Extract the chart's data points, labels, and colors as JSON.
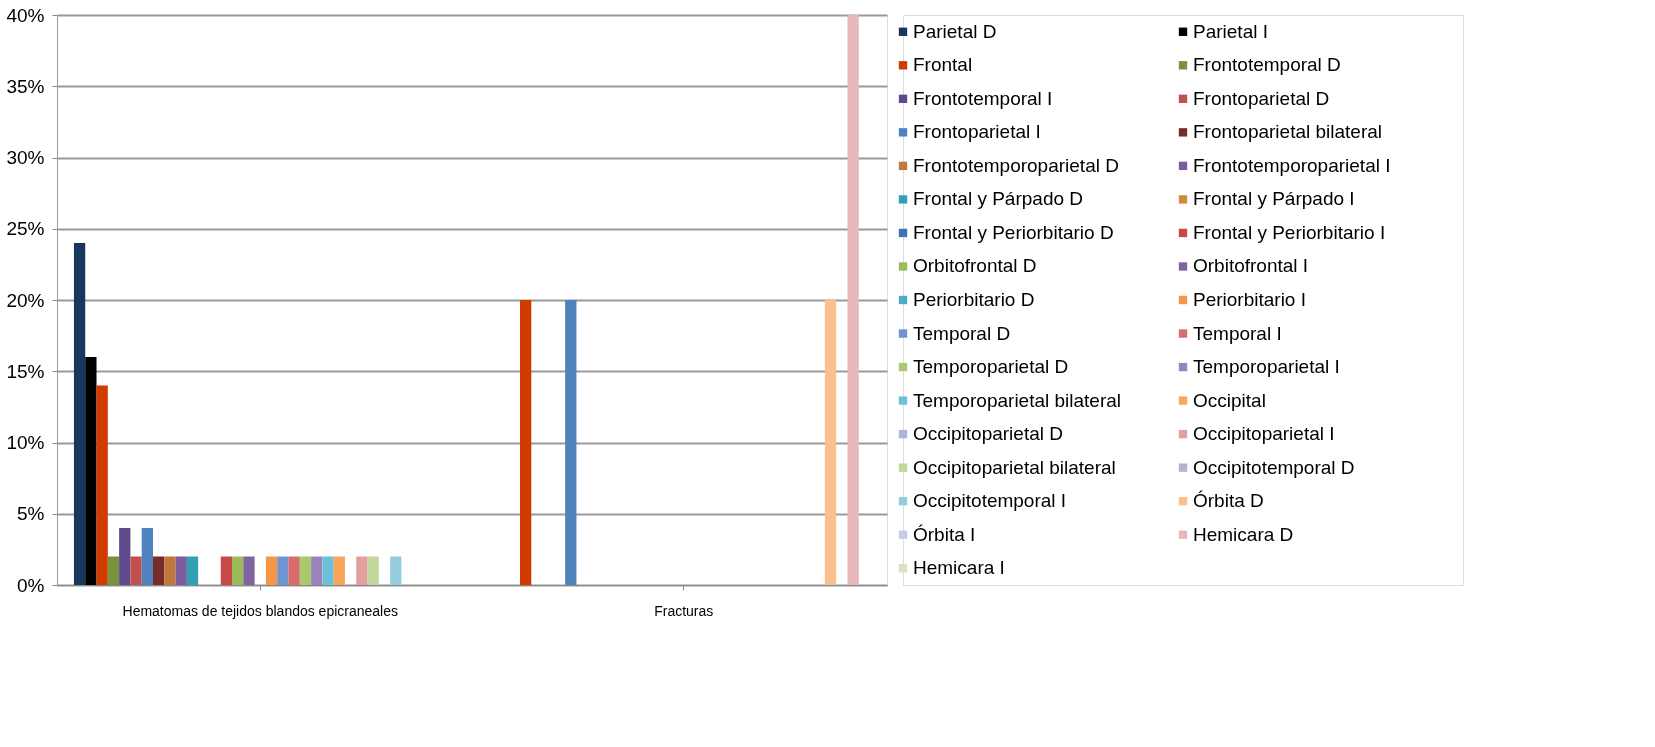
{
  "chart_data": {
    "type": "bar",
    "categories": [
      "Hematomas de tejidos blandos epicraneales",
      "Fracturas"
    ],
    "ylim": [
      0,
      40
    ],
    "yticks": [
      {
        "value": 0,
        "label": "0%"
      },
      {
        "value": 5,
        "label": "5%"
      },
      {
        "value": 10,
        "label": "10%"
      },
      {
        "value": 15,
        "label": "15%"
      },
      {
        "value": 20,
        "label": "20%"
      },
      {
        "value": 25,
        "label": "25%"
      },
      {
        "value": 30,
        "label": "30%"
      },
      {
        "value": 35,
        "label": "35%"
      },
      {
        "value": 40,
        "label": "40%"
      }
    ],
    "grid": "y",
    "legend": "right",
    "series": [
      {
        "name": "Parietal D",
        "color": "#17375e",
        "values": [
          24,
          0
        ]
      },
      {
        "name": "Parietal I",
        "color": "#000000",
        "values": [
          16,
          0
        ]
      },
      {
        "name": "Frontal",
        "color": "#d13b00",
        "values": [
          14,
          20
        ]
      },
      {
        "name": "Frontotemporal D",
        "color": "#77933c",
        "values": [
          2,
          0
        ]
      },
      {
        "name": "Frontotemporal I",
        "color": "#5f4b8b",
        "values": [
          4,
          0
        ]
      },
      {
        "name": "Frontoparietal D",
        "color": "#c0504d",
        "values": [
          2,
          0
        ]
      },
      {
        "name": "Frontoparietal I",
        "color": "#4f81bd",
        "values": [
          4,
          20
        ]
      },
      {
        "name": "Frontoparietal bilateral",
        "color": "#772c2a",
        "values": [
          2,
          0
        ]
      },
      {
        "name": "Frontotemporoparietal D",
        "color": "#c0783c",
        "values": [
          2,
          0
        ]
      },
      {
        "name": "Frontotemporoparietal I",
        "color": "#7c5c9c",
        "values": [
          2,
          0
        ]
      },
      {
        "name": "Frontal y Párpado D",
        "color": "#31a0b5",
        "values": [
          2,
          0
        ]
      },
      {
        "name": "Frontal y Párpado I",
        "color": "#d08a3a",
        "values": [
          0,
          0
        ]
      },
      {
        "name": "Frontal y Periorbitario D",
        "color": "#3e72b5",
        "values": [
          0,
          0
        ]
      },
      {
        "name": "Frontal y Periorbitario I",
        "color": "#c84848",
        "values": [
          2,
          0
        ]
      },
      {
        "name": "Orbitofrontal D",
        "color": "#9bbb59",
        "values": [
          2,
          0
        ]
      },
      {
        "name": "Orbitofrontal I",
        "color": "#8064a2",
        "values": [
          2,
          0
        ]
      },
      {
        "name": "Periorbitario D",
        "color": "#4bacc6",
        "values": [
          0,
          0
        ]
      },
      {
        "name": "Periorbitario I",
        "color": "#f79646",
        "values": [
          2,
          0
        ]
      },
      {
        "name": "Temporal D",
        "color": "#6f94d0",
        "values": [
          2,
          0
        ]
      },
      {
        "name": "Temporal I",
        "color": "#d86b6b",
        "values": [
          2,
          0
        ]
      },
      {
        "name": "Temporoparietal D",
        "color": "#a9c96b",
        "values": [
          2,
          0
        ]
      },
      {
        "name": "Temporoparietal I",
        "color": "#9a83bd",
        "values": [
          2,
          0
        ]
      },
      {
        "name": "Temporoparietal bilateral",
        "color": "#6cc0d8",
        "values": [
          2,
          0
        ]
      },
      {
        "name": "Occipital",
        "color": "#f9a65a",
        "values": [
          2,
          0
        ]
      },
      {
        "name": "Occipitoparietal D",
        "color": "#a9b6d8",
        "values": [
          0,
          0
        ]
      },
      {
        "name": "Occipitoparietal I",
        "color": "#e0a0a0",
        "values": [
          2,
          0
        ]
      },
      {
        "name": "Occipitoparietal bilateral",
        "color": "#c3d69b",
        "values": [
          2,
          0
        ]
      },
      {
        "name": "Occipitotemporal D",
        "color": "#b3b3cc",
        "values": [
          0,
          0
        ]
      },
      {
        "name": "Occipitotemporal I",
        "color": "#93cddd",
        "values": [
          2,
          0
        ]
      },
      {
        "name": "Órbita D",
        "color": "#fac090",
        "values": [
          0,
          20
        ]
      },
      {
        "name": "Órbita I",
        "color": "#c5cde6",
        "values": [
          0,
          0
        ]
      },
      {
        "name": "Hemicara D",
        "color": "#e6b9b8",
        "values": [
          0,
          40
        ]
      },
      {
        "name": "Hemicara I",
        "color": "#d7e4bd",
        "values": [
          0,
          0
        ]
      }
    ]
  }
}
